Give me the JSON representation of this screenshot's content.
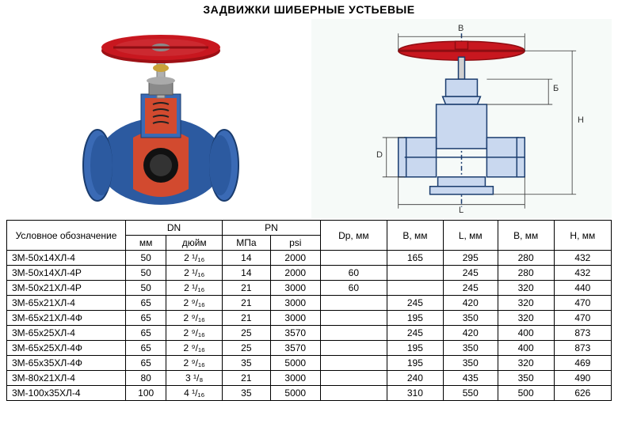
{
  "title": "ЗАДВИЖКИ ШИБЕРНЫЕ УСТЬЕВЫЕ",
  "diagram": {
    "labels": {
      "B": "B",
      "Bsub": "Б",
      "H": "H",
      "D": "D",
      "L": "L"
    },
    "colors": {
      "handwheel": "#c8171f",
      "body": "#2c5aa0",
      "stem": "#b0b0b0",
      "bonnet": "#8a8a8a",
      "brass": "#c9a23a",
      "cut": "#d24a2f",
      "line": "#1a3c6e",
      "bg_right": "#f6faf8"
    }
  },
  "table": {
    "header": {
      "model": "Условное обозначение",
      "dn": "DN",
      "dn_mm": "мм",
      "dn_inch": "дюйм",
      "pn": "PN",
      "pn_mpa": "МПа",
      "pn_psi": "psi",
      "dp": "Dp, мм",
      "b": "B, мм",
      "l": "L, мм",
      "b2": "В, мм",
      "h": "H, мм"
    },
    "rows": [
      {
        "model": "3М-50х14ХЛ-4",
        "dn_mm": "50",
        "dn_inch": "2 ¹/₁₆",
        "mpa": "14",
        "psi": "2000",
        "dp": "",
        "b": "165",
        "l": "295",
        "b2": "280",
        "h": "432"
      },
      {
        "model": "3М-50х14ХЛ-4Р",
        "dn_mm": "50",
        "dn_inch": "2 ¹/₁₆",
        "mpa": "14",
        "psi": "2000",
        "dp": "60",
        "b": "",
        "l": "245",
        "b2": "280",
        "h": "432"
      },
      {
        "model": "3М-50х21ХЛ-4Р",
        "dn_mm": "50",
        "dn_inch": "2 ¹/₁₆",
        "mpa": "21",
        "psi": "3000",
        "dp": "60",
        "b": "",
        "l": "245",
        "b2": "320",
        "h": "440"
      },
      {
        "model": "3М-65х21ХЛ-4",
        "dn_mm": "65",
        "dn_inch": "2 ⁹/₁₆",
        "mpa": "21",
        "psi": "3000",
        "dp": "",
        "b": "245",
        "l": "420",
        "b2": "320",
        "h": "470"
      },
      {
        "model": "3М-65х21ХЛ-4Ф",
        "dn_mm": "65",
        "dn_inch": "2 ⁹/₁₆",
        "mpa": "21",
        "psi": "3000",
        "dp": "",
        "b": "195",
        "l": "350",
        "b2": "320",
        "h": "470"
      },
      {
        "model": "3М-65х25ХЛ-4",
        "dn_mm": "65",
        "dn_inch": "2 ⁹/₁₆",
        "mpa": "25",
        "psi": "3570",
        "dp": "",
        "b": "245",
        "l": "420",
        "b2": "400",
        "h": "873"
      },
      {
        "model": "3М-65х25ХЛ-4Ф",
        "dn_mm": "65",
        "dn_inch": "2 ⁹/₁₆",
        "mpa": "25",
        "psi": "3570",
        "dp": "",
        "b": "195",
        "l": "350",
        "b2": "400",
        "h": "873"
      },
      {
        "model": "3М-65х35ХЛ-4Ф",
        "dn_mm": "65",
        "dn_inch": "2 ⁹/₁₆",
        "mpa": "35",
        "psi": "5000",
        "dp": "",
        "b": "195",
        "l": "350",
        "b2": "320",
        "h": "469"
      },
      {
        "model": "3М-80х21ХЛ-4",
        "dn_mm": "80",
        "dn_inch": "3 ¹/₈",
        "mpa": "21",
        "psi": "3000",
        "dp": "",
        "b": "240",
        "l": "435",
        "b2": "350",
        "h": "490"
      },
      {
        "model": "3М-100х35ХЛ-4",
        "dn_mm": "100",
        "dn_inch": "4 ¹/₁₆",
        "mpa": "35",
        "psi": "5000",
        "dp": "",
        "b": "310",
        "l": "550",
        "b2": "500",
        "h": "626"
      }
    ]
  }
}
